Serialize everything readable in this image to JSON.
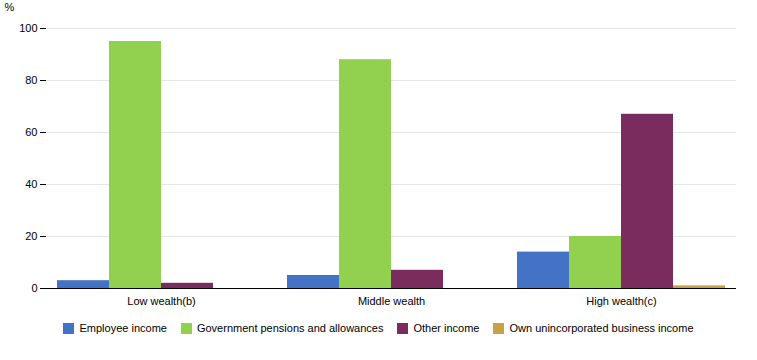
{
  "chart_data": {
    "type": "bar",
    "categories": [
      "Low wealth(b)",
      "Middle wealth",
      "High wealth(c)"
    ],
    "series": [
      {
        "name": "Employee income",
        "color": "#4472C4",
        "values": [
          3,
          5,
          14
        ]
      },
      {
        "name": "Government pensions and allowances",
        "color": "#92D050",
        "values": [
          95,
          88,
          20
        ]
      },
      {
        "name": "Other income",
        "color": "#7B2C5E",
        "values": [
          2,
          7,
          67
        ]
      },
      {
        "name": "Own unincorporated business income",
        "color": "#C8A045",
        "values": [
          0,
          0,
          1
        ]
      }
    ],
    "ylabel": "%",
    "ylim": [
      0,
      100
    ],
    "yticks": [
      0,
      20,
      40,
      60,
      80,
      100
    ],
    "grid": true,
    "legend": "bottom"
  }
}
